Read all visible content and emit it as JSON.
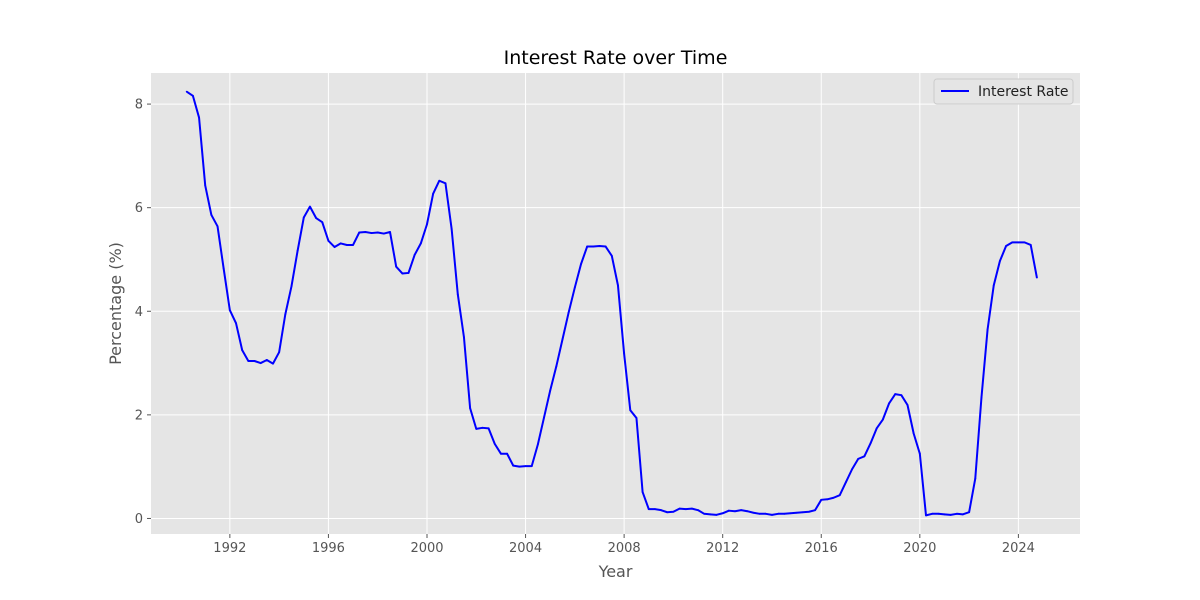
{
  "chart_data": {
    "type": "line",
    "title": "Interest Rate over Time",
    "xlabel": "Year",
    "ylabel": "Percentage (%)",
    "xlim": [
      1988.8,
      2026.5
    ],
    "ylim": [
      -0.3,
      8.6
    ],
    "x_ticks": [
      1992,
      1996,
      2000,
      2004,
      2008,
      2012,
      2016,
      2020,
      2024
    ],
    "y_ticks": [
      0,
      2,
      4,
      6,
      8
    ],
    "grid": true,
    "legend_position": "upper right",
    "series": [
      {
        "name": "Interest Rate",
        "color": "#0000ff",
        "points": [
          [
            1990.25,
            8.24
          ],
          [
            1990.5,
            8.16
          ],
          [
            1990.75,
            7.74
          ],
          [
            1991.0,
            6.43
          ],
          [
            1991.25,
            5.86
          ],
          [
            1991.5,
            5.64
          ],
          [
            1991.75,
            4.82
          ],
          [
            1992.0,
            4.02
          ],
          [
            1992.25,
            3.77
          ],
          [
            1992.5,
            3.25
          ],
          [
            1992.75,
            3.04
          ],
          [
            1993.0,
            3.04
          ],
          [
            1993.25,
            3.0
          ],
          [
            1993.5,
            3.06
          ],
          [
            1993.75,
            2.99
          ],
          [
            1994.0,
            3.21
          ],
          [
            1994.25,
            3.94
          ],
          [
            1994.5,
            4.48
          ],
          [
            1994.75,
            5.17
          ],
          [
            1995.0,
            5.81
          ],
          [
            1995.25,
            6.02
          ],
          [
            1995.5,
            5.8
          ],
          [
            1995.75,
            5.72
          ],
          [
            1996.0,
            5.36
          ],
          [
            1996.25,
            5.24
          ],
          [
            1996.5,
            5.31
          ],
          [
            1996.75,
            5.28
          ],
          [
            1997.0,
            5.28
          ],
          [
            1997.25,
            5.52
          ],
          [
            1997.5,
            5.53
          ],
          [
            1997.75,
            5.51
          ],
          [
            1998.0,
            5.52
          ],
          [
            1998.25,
            5.5
          ],
          [
            1998.5,
            5.53
          ],
          [
            1998.75,
            4.86
          ],
          [
            1999.0,
            4.73
          ],
          [
            1999.25,
            4.74
          ],
          [
            1999.5,
            5.09
          ],
          [
            1999.75,
            5.31
          ],
          [
            2000.0,
            5.68
          ],
          [
            2000.25,
            6.27
          ],
          [
            2000.5,
            6.52
          ],
          [
            2000.75,
            6.47
          ],
          [
            2001.0,
            5.59
          ],
          [
            2001.25,
            4.33
          ],
          [
            2001.5,
            3.5
          ],
          [
            2001.75,
            2.13
          ],
          [
            2002.0,
            1.73
          ],
          [
            2002.25,
            1.75
          ],
          [
            2002.5,
            1.74
          ],
          [
            2002.75,
            1.44
          ],
          [
            2003.0,
            1.25
          ],
          [
            2003.25,
            1.25
          ],
          [
            2003.5,
            1.02
          ],
          [
            2003.75,
            1.0
          ],
          [
            2004.0,
            1.01
          ],
          [
            2004.25,
            1.01
          ],
          [
            2004.5,
            1.43
          ],
          [
            2004.75,
            1.95
          ],
          [
            2005.0,
            2.47
          ],
          [
            2005.25,
            2.94
          ],
          [
            2005.5,
            3.46
          ],
          [
            2005.75,
            3.98
          ],
          [
            2006.0,
            4.46
          ],
          [
            2006.25,
            4.91
          ],
          [
            2006.5,
            5.25
          ],
          [
            2006.75,
            5.25
          ],
          [
            2007.0,
            5.26
          ],
          [
            2007.25,
            5.25
          ],
          [
            2007.5,
            5.07
          ],
          [
            2007.75,
            4.5
          ],
          [
            2008.0,
            3.18
          ],
          [
            2008.25,
            2.09
          ],
          [
            2008.5,
            1.94
          ],
          [
            2008.75,
            0.51
          ],
          [
            2009.0,
            0.18
          ],
          [
            2009.25,
            0.18
          ],
          [
            2009.5,
            0.16
          ],
          [
            2009.75,
            0.12
          ],
          [
            2010.0,
            0.13
          ],
          [
            2010.25,
            0.19
          ],
          [
            2010.5,
            0.18
          ],
          [
            2010.75,
            0.19
          ],
          [
            2011.0,
            0.16
          ],
          [
            2011.25,
            0.09
          ],
          [
            2011.5,
            0.08
          ],
          [
            2011.75,
            0.07
          ],
          [
            2012.0,
            0.1
          ],
          [
            2012.25,
            0.15
          ],
          [
            2012.5,
            0.14
          ],
          [
            2012.75,
            0.16
          ],
          [
            2013.0,
            0.14
          ],
          [
            2013.25,
            0.11
          ],
          [
            2013.5,
            0.09
          ],
          [
            2013.75,
            0.09
          ],
          [
            2014.0,
            0.07
          ],
          [
            2014.25,
            0.09
          ],
          [
            2014.5,
            0.09
          ],
          [
            2014.75,
            0.1
          ],
          [
            2015.0,
            0.11
          ],
          [
            2015.25,
            0.12
          ],
          [
            2015.5,
            0.13
          ],
          [
            2015.75,
            0.16
          ],
          [
            2016.0,
            0.36
          ],
          [
            2016.25,
            0.37
          ],
          [
            2016.5,
            0.4
          ],
          [
            2016.75,
            0.45
          ],
          [
            2017.0,
            0.7
          ],
          [
            2017.25,
            0.95
          ],
          [
            2017.5,
            1.15
          ],
          [
            2017.75,
            1.2
          ],
          [
            2018.0,
            1.45
          ],
          [
            2018.25,
            1.74
          ],
          [
            2018.5,
            1.91
          ],
          [
            2018.75,
            2.22
          ],
          [
            2019.0,
            2.4
          ],
          [
            2019.25,
            2.38
          ],
          [
            2019.5,
            2.19
          ],
          [
            2019.75,
            1.64
          ],
          [
            2020.0,
            1.25
          ],
          [
            2020.25,
            0.06
          ],
          [
            2020.5,
            0.09
          ],
          [
            2020.75,
            0.09
          ],
          [
            2021.0,
            0.08
          ],
          [
            2021.25,
            0.07
          ],
          [
            2021.5,
            0.09
          ],
          [
            2021.75,
            0.08
          ],
          [
            2022.0,
            0.12
          ],
          [
            2022.25,
            0.77
          ],
          [
            2022.5,
            2.33
          ],
          [
            2022.75,
            3.65
          ],
          [
            2023.0,
            4.5
          ],
          [
            2023.25,
            4.97
          ],
          [
            2023.5,
            5.26
          ],
          [
            2023.75,
            5.33
          ],
          [
            2024.0,
            5.33
          ],
          [
            2024.25,
            5.33
          ],
          [
            2024.5,
            5.28
          ],
          [
            2024.75,
            4.65
          ]
        ]
      }
    ]
  }
}
